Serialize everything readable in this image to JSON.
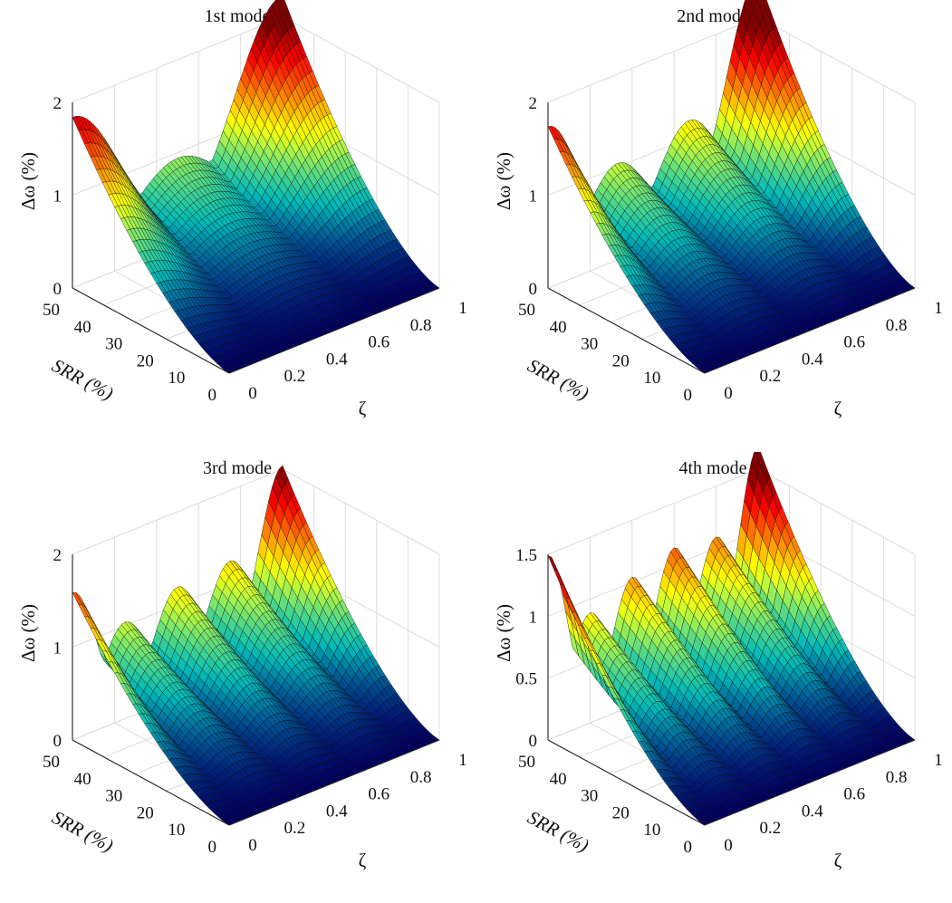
{
  "figure": {
    "panels": [
      {
        "title": "1st mode"
      },
      {
        "title": "2nd mode"
      },
      {
        "title": "3rd mode"
      },
      {
        "title": "4th mode"
      }
    ]
  },
  "chart_data": [
    {
      "type": "surface",
      "title": "1st mode",
      "xlabel": "ζ",
      "ylabel": "SRR (%)",
      "zlabel": "Δω (%)",
      "xlim": [
        0,
        1
      ],
      "ylim": [
        0,
        50
      ],
      "zlim": [
        0,
        2
      ],
      "xticks": [
        "0",
        "0.2",
        "0.4",
        "0.6",
        "0.8",
        "1"
      ],
      "yticks": [
        "0",
        "10",
        "20",
        "30",
        "40",
        "50"
      ],
      "zticks": [
        "0",
        "1",
        "2"
      ],
      "colormap": "jet",
      "grid": true,
      "peaks_at_srr_50": [
        {
          "zeta": 0.0,
          "delta_omega": 1.8
        },
        {
          "zeta": 0.5,
          "delta_omega": 0.9
        },
        {
          "zeta": 1.0,
          "delta_omega": 2.2
        }
      ]
    },
    {
      "type": "surface",
      "title": "2nd mode",
      "xlabel": "ζ",
      "ylabel": "SRR (%)",
      "zlabel": "Δω (%)",
      "xlim": [
        0,
        1
      ],
      "ylim": [
        0,
        50
      ],
      "zlim": [
        0,
        2
      ],
      "xticks": [
        "0",
        "0.2",
        "0.4",
        "0.6",
        "0.8",
        "1"
      ],
      "yticks": [
        "0",
        "10",
        "20",
        "30",
        "40",
        "50"
      ],
      "zticks": [
        "0",
        "1",
        "2"
      ],
      "colormap": "jet",
      "grid": true,
      "peaks_at_srr_50": [
        {
          "zeta": 0.0,
          "delta_omega": 1.7
        },
        {
          "zeta": 0.33,
          "delta_omega": 1.0
        },
        {
          "zeta": 0.67,
          "delta_omega": 1.15
        },
        {
          "zeta": 1.0,
          "delta_omega": 2.4
        }
      ]
    },
    {
      "type": "surface",
      "title": "3rd mode",
      "xlabel": "ζ",
      "ylabel": "SRR (%)",
      "zlabel": "Δω (%)",
      "xlim": [
        0,
        1
      ],
      "ylim": [
        0,
        50
      ],
      "zlim": [
        0,
        2
      ],
      "xticks": [
        "0",
        "0.2",
        "0.4",
        "0.6",
        "0.8",
        "1"
      ],
      "yticks": [
        "0",
        "10",
        "20",
        "30",
        "40",
        "50"
      ],
      "zticks": [
        "0",
        "1",
        "2"
      ],
      "colormap": "jet",
      "grid": true,
      "peaks_at_srr_50": [
        {
          "zeta": 0.0,
          "delta_omega": 1.55
        },
        {
          "zeta": 0.25,
          "delta_omega": 1.0
        },
        {
          "zeta": 0.5,
          "delta_omega": 1.15
        },
        {
          "zeta": 0.75,
          "delta_omega": 1.2
        },
        {
          "zeta": 1.0,
          "delta_omega": 2.0
        }
      ]
    },
    {
      "type": "surface",
      "title": "4th mode",
      "xlabel": "ζ",
      "ylabel": "SRR (%)",
      "zlabel": "Δω (%)",
      "xlim": [
        0,
        1
      ],
      "ylim": [
        0,
        50
      ],
      "zlim": [
        0,
        1.5
      ],
      "xticks": [
        "0",
        "0.2",
        "0.4",
        "0.6",
        "0.8",
        "1"
      ],
      "yticks": [
        "0",
        "10",
        "20",
        "30",
        "40",
        "50"
      ],
      "zticks": [
        "0",
        "0.5",
        "1",
        "1.5"
      ],
      "colormap": "jet",
      "grid": true,
      "peaks_at_srr_50": [
        {
          "zeta": 0.0,
          "delta_omega": 1.45
        },
        {
          "zeta": 0.2,
          "delta_omega": 0.85
        },
        {
          "zeta": 0.4,
          "delta_omega": 1.0
        },
        {
          "zeta": 0.6,
          "delta_omega": 1.1
        },
        {
          "zeta": 0.8,
          "delta_omega": 1.05
        },
        {
          "zeta": 1.0,
          "delta_omega": 1.65
        }
      ]
    }
  ]
}
